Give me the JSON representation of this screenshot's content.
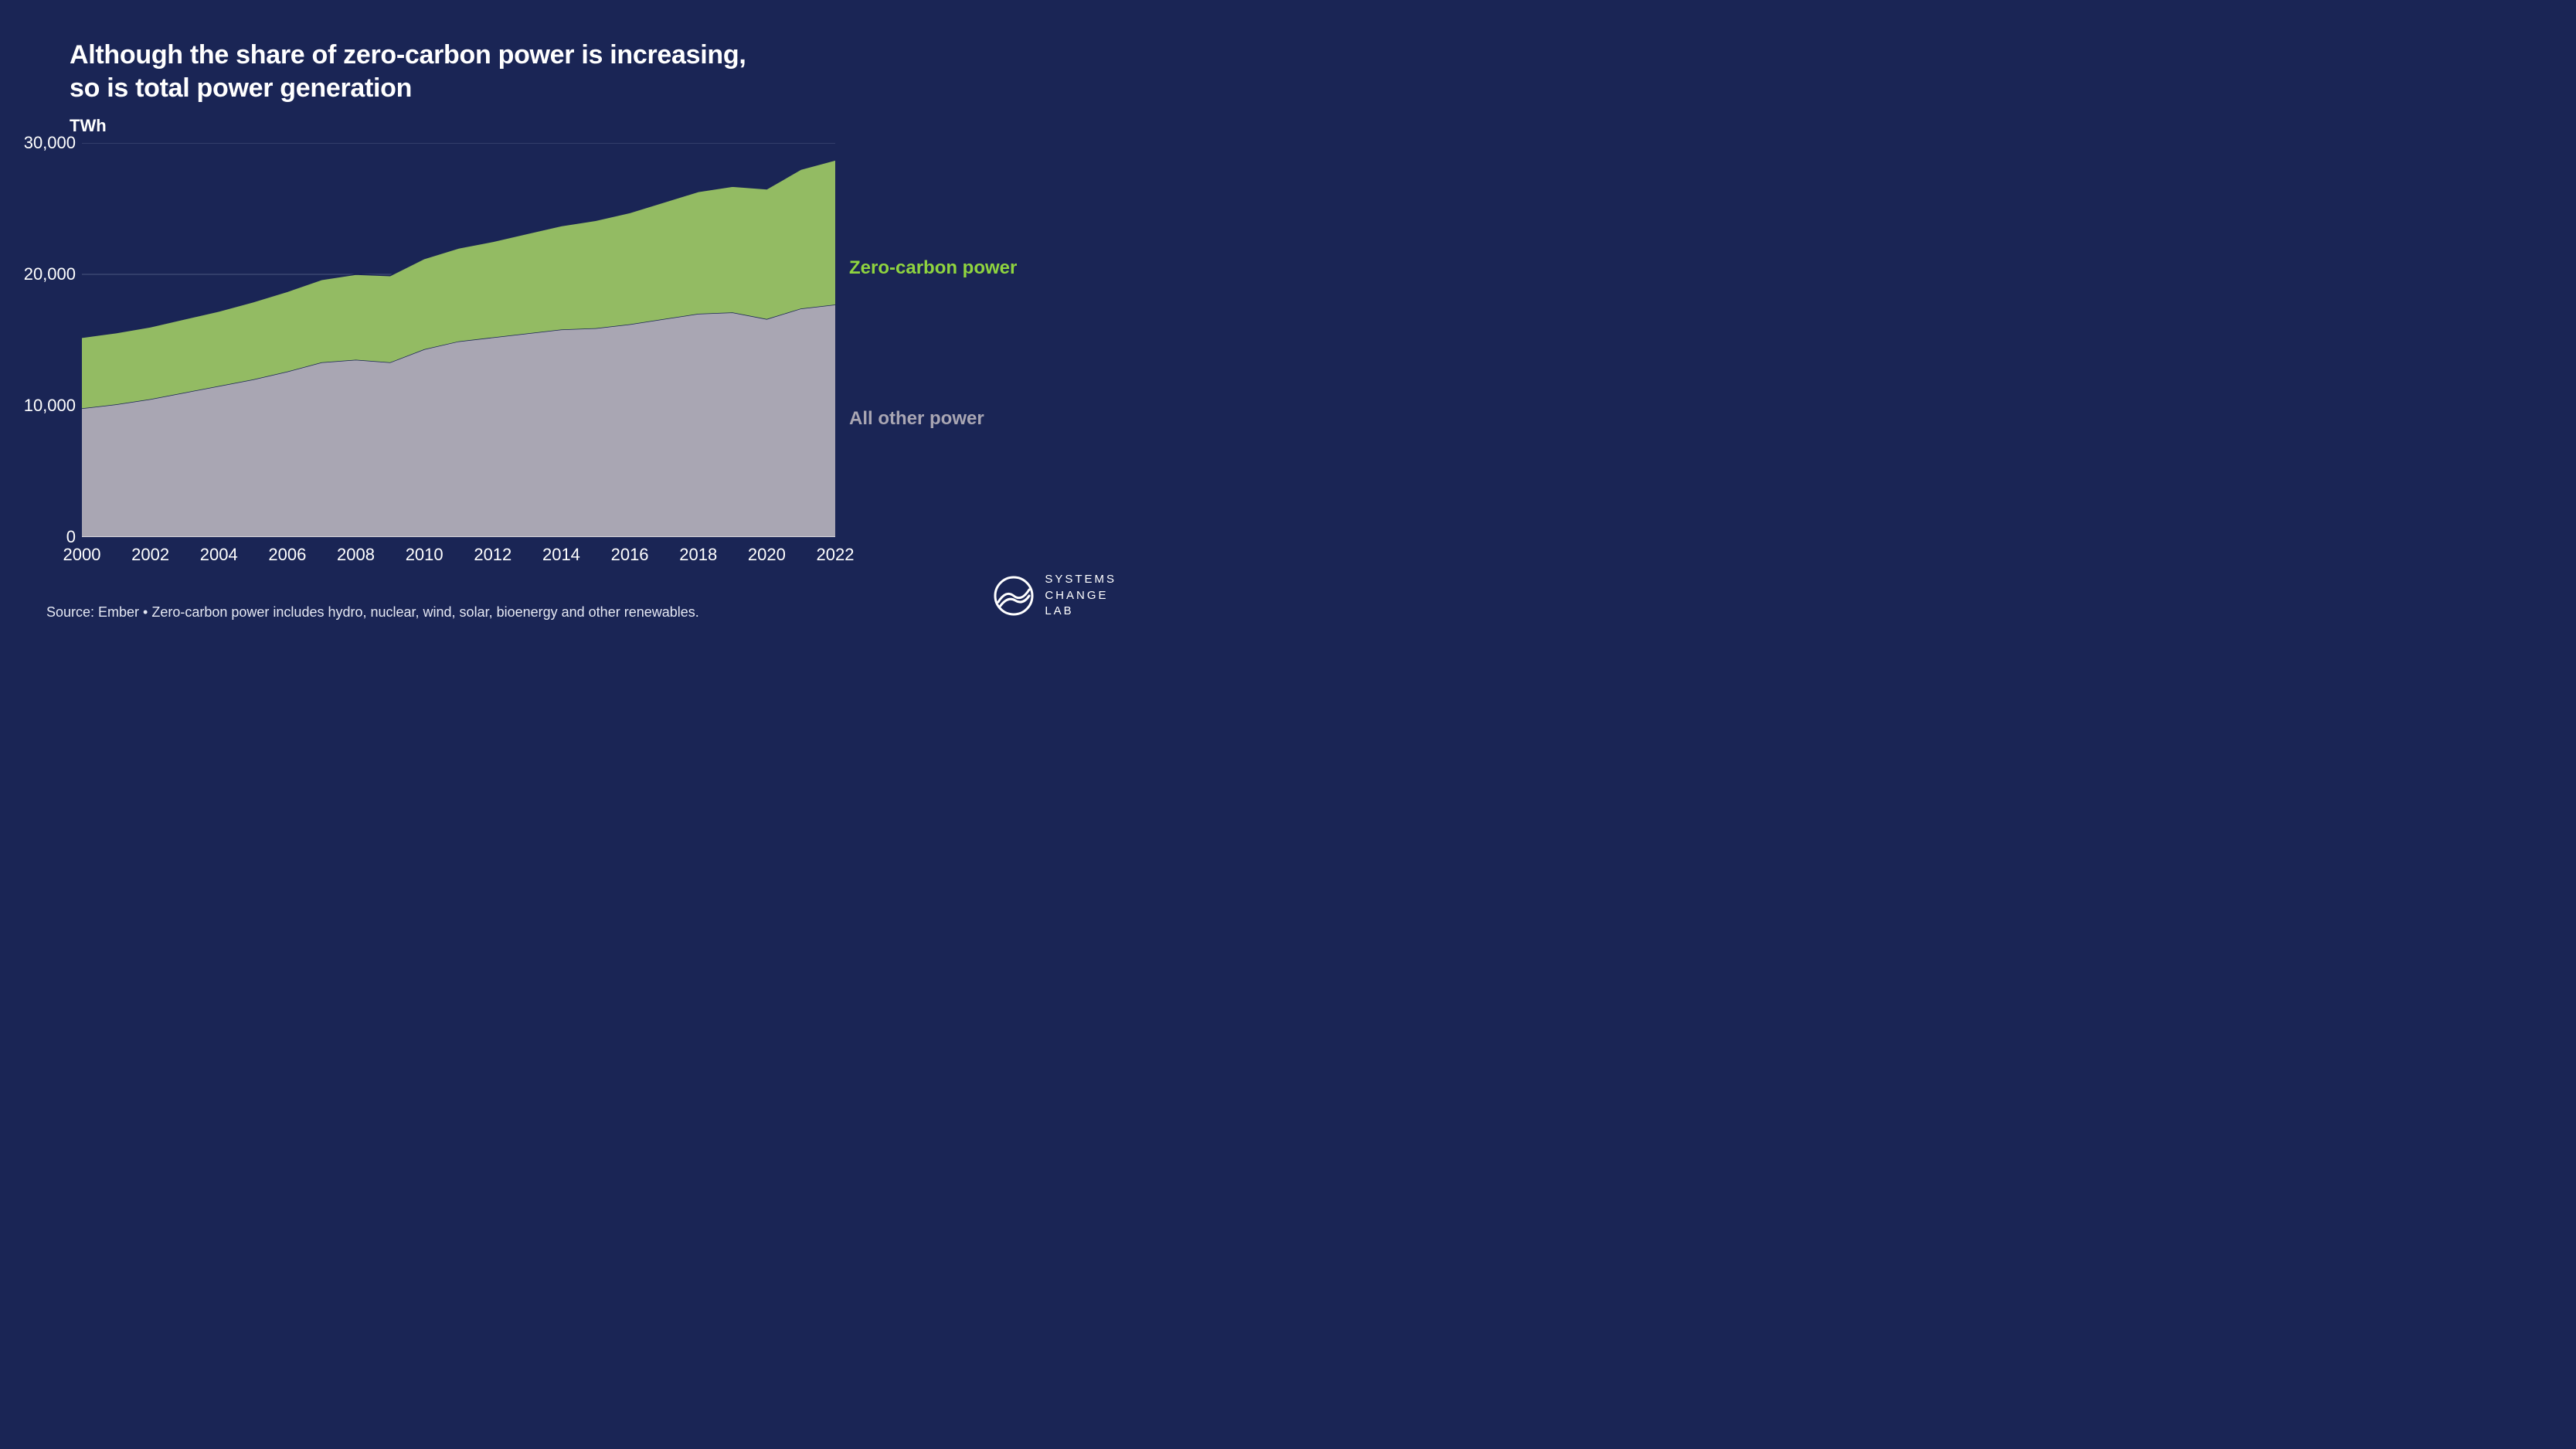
{
  "title_line1": "Although the share of zero-carbon power is increasing,",
  "title_line2": "so is total power generation",
  "chart": {
    "type": "area-stacked",
    "ylabel": "TWh",
    "background_color": "#1a2555",
    "grid_color": "#4a567f",
    "axis_color": "#ffffff",
    "tick_fontsize": 22,
    "title_fontsize": 34,
    "label_fontsize": 24,
    "xlim": [
      2000,
      2022
    ],
    "ylim": [
      0,
      30000
    ],
    "yticks": [
      0,
      10000,
      20000,
      30000
    ],
    "ytick_labels": [
      "0",
      "10,000",
      "20,000",
      "30,000"
    ],
    "xticks": [
      2000,
      2002,
      2004,
      2006,
      2008,
      2010,
      2012,
      2014,
      2016,
      2018,
      2020,
      2022
    ],
    "xtick_labels": [
      "2000",
      "2002",
      "2004",
      "2006",
      "2008",
      "2010",
      "2012",
      "2014",
      "2016",
      "2018",
      "2020",
      "2022"
    ],
    "years": [
      2000,
      2001,
      2002,
      2003,
      2004,
      2005,
      2006,
      2007,
      2008,
      2009,
      2010,
      2011,
      2012,
      2013,
      2014,
      2015,
      2016,
      2017,
      2018,
      2019,
      2020,
      2021,
      2022
    ],
    "series": [
      {
        "name": "All other power",
        "label": "All other power",
        "fill_color": "#a9a6b3",
        "stroke_color": "#1a2555",
        "stroke_width": 1.5,
        "label_color": "#a9a6b3",
        "label_y": 9000,
        "values": [
          9800,
          10100,
          10500,
          11000,
          11500,
          12000,
          12600,
          13300,
          13500,
          13300,
          14300,
          14900,
          15200,
          15500,
          15800,
          15900,
          16200,
          16600,
          17000,
          17100,
          16600,
          17400,
          17700
        ]
      },
      {
        "name": "Zero-carbon power",
        "label": "Zero-carbon power",
        "fill_color": "#93bb63",
        "stroke_color": "#1a2555",
        "stroke_width": 1.5,
        "label_color": "#8fd43f",
        "label_y": 20500,
        "values": [
          5400,
          5450,
          5500,
          5600,
          5700,
          5900,
          6100,
          6300,
          6500,
          6600,
          6900,
          7100,
          7300,
          7600,
          7900,
          8200,
          8500,
          8900,
          9300,
          9600,
          9900,
          10600,
          11000
        ]
      }
    ]
  },
  "source_text": "Source: Ember • Zero-carbon power includes hydro, nuclear, wind, solar, bioenergy and other renewables.",
  "logo": {
    "line1": "SYSTEMS",
    "line2": "CHANGE",
    "line3": "LAB",
    "stroke_color": "#ffffff"
  }
}
